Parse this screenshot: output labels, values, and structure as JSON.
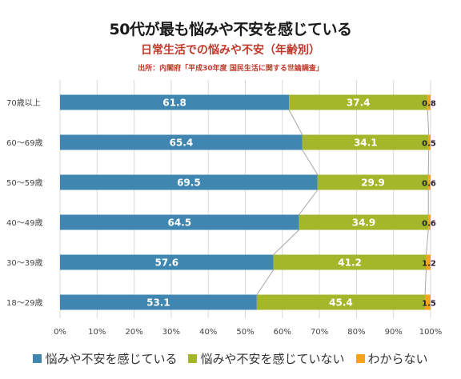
{
  "header": {
    "title": "50代が最も悩みや不安を感じている",
    "subtitle": "日常生活での悩みや不安（年齢別）",
    "source": "出所：内閣府「平成30年度 国民生活に関する世論調査」"
  },
  "colors": {
    "anxious": "#3f87b0",
    "not_anxious": "#a4b72b",
    "unknown": "#f5a21c",
    "grid": "#d9d9d9",
    "connector": "#a6a6a6"
  },
  "chart_data": {
    "type": "bar",
    "orientation": "horizontal",
    "stacked": true,
    "categories": [
      "70歳以上",
      "60～69歳",
      "50～59歳",
      "40～49歳",
      "30～39歳",
      "18～29歳"
    ],
    "series": [
      {
        "name": "悩みや不安を感じている",
        "values": [
          61.8,
          65.4,
          69.5,
          64.5,
          57.6,
          53.1
        ]
      },
      {
        "name": "悩みや不安を感じていない",
        "values": [
          37.4,
          34.1,
          29.9,
          34.9,
          41.2,
          45.4
        ]
      },
      {
        "name": "わからない",
        "values": [
          0.8,
          0.5,
          0.6,
          0.6,
          1.2,
          1.5
        ]
      }
    ],
    "value_labels": [
      [
        "61.8",
        "65.4",
        "69.5",
        "64.5",
        "57.6",
        "53.1"
      ],
      [
        "37.4",
        "34.1",
        "29.9",
        "34.9",
        "41.2",
        "45.4"
      ],
      [
        "0.8",
        "0.5",
        "0.6",
        "0.6",
        "1.2",
        "1.5"
      ]
    ],
    "xlim": [
      0,
      100
    ],
    "x_ticks": [
      "0%",
      "10%",
      "20%",
      "30%",
      "40%",
      "50%",
      "60%",
      "70%",
      "80%",
      "90%",
      "100%"
    ],
    "grid": "vertical",
    "series_lines": true,
    "legend": "bottom"
  }
}
